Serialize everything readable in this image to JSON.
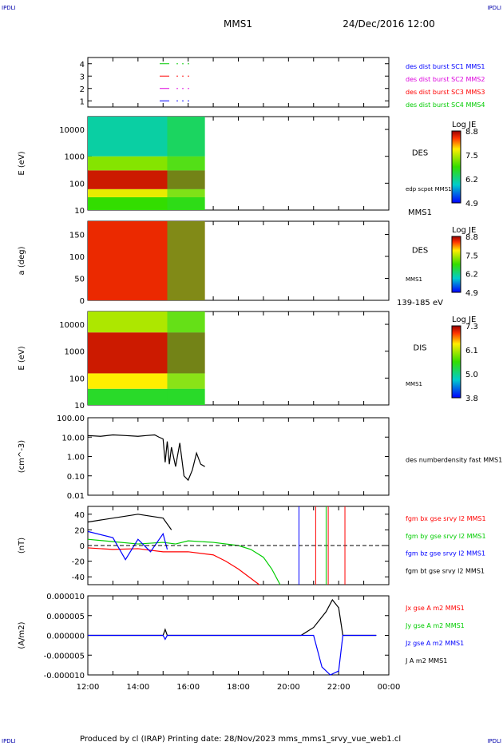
{
  "header": {
    "corner_tl": "IPDLI",
    "corner_tr": "IPDLI",
    "corner_bl": "IPDLI",
    "corner_br": "IPDLI",
    "title": "MMS1",
    "date": "24/Dec/2016 12:00",
    "footer": "Produced by cl (IRAP)   Printing date: 28/Nov/2023   mms_mms1_srvy_vue_web1.cl"
  },
  "colors": {
    "red": "#ff0000",
    "green": "#00cc00",
    "blue": "#0000ff",
    "magenta": "#dd00dd",
    "black": "#000000"
  },
  "chart_data": [
    {
      "id": "spacecraft-status",
      "type": "line",
      "ylim": [
        0.5,
        4.5
      ],
      "y_ticks": [
        "1",
        "2",
        "3",
        "4"
      ],
      "legend_marks": [
        {
          "y": 4,
          "color": "#00cc00"
        },
        {
          "y": 3,
          "color": "#ff0000"
        },
        {
          "y": 2,
          "color": "#dd00dd"
        },
        {
          "y": 1,
          "color": "#0000ff"
        }
      ],
      "legend": [
        {
          "label": "des dist burst SC1 MMS1",
          "color": "#0000ff"
        },
        {
          "label": "des dist burst SC2 MMS2",
          "color": "#dd00dd"
        },
        {
          "label": "des dist burst SC3 MMS3",
          "color": "#ff0000"
        },
        {
          "label": "des dist burst SC4 MMS4",
          "color": "#00cc00"
        }
      ]
    },
    {
      "id": "des-energy-spectrogram",
      "type": "heatmap",
      "ylabel": "E (eV)",
      "y_scale": "log",
      "ylim": [
        10,
        30000
      ],
      "y_ticks": [
        "10",
        "100",
        "1000",
        "10000"
      ],
      "x_range": [
        "12:00",
        "16:40"
      ],
      "data_end": "16:40",
      "side_labels": [
        "DES",
        "edp scpot MMS1",
        "MMS1"
      ],
      "colorbar": {
        "title": "Log JE",
        "ticks": [
          "8.8",
          "7.5",
          "6.2",
          "4.9"
        ]
      },
      "bands": [
        {
          "from_eV": 10,
          "to_eV": 30,
          "level": 0.5
        },
        {
          "from_eV": 30,
          "to_eV": 60,
          "level": 0.72
        },
        {
          "from_eV": 60,
          "to_eV": 300,
          "level": 0.95
        },
        {
          "from_eV": 300,
          "to_eV": 1000,
          "level": 0.6
        },
        {
          "from_eV": 1000,
          "to_eV": 30000,
          "level": 0.3
        }
      ]
    },
    {
      "id": "des-pitch-angle",
      "type": "heatmap",
      "ylabel": "a (deg)",
      "ylim": [
        0,
        180
      ],
      "y_ticks": [
        "0",
        "50",
        "100",
        "150"
      ],
      "side_labels": [
        "DES",
        "MMS1",
        "139-185 eV"
      ],
      "colorbar": {
        "title": "Log JE",
        "ticks": [
          "8.8",
          "7.5",
          "6.2",
          "4.9"
        ]
      },
      "data_end": "16:40"
    },
    {
      "id": "dis-energy-spectrogram",
      "type": "heatmap",
      "ylabel": "E (eV)",
      "y_scale": "log",
      "ylim": [
        10,
        30000
      ],
      "y_ticks": [
        "10",
        "100",
        "1000",
        "10000"
      ],
      "side_labels": [
        "DIS",
        "MMS1"
      ],
      "colorbar": {
        "title": "Log JE",
        "ticks": [
          "7.3",
          "6.1",
          "5.0",
          "3.8"
        ]
      },
      "data_end": "16:40",
      "bands": [
        {
          "from_eV": 10,
          "to_eV": 40,
          "level": 0.45
        },
        {
          "from_eV": 40,
          "to_eV": 150,
          "level": 0.75
        },
        {
          "from_eV": 150,
          "to_eV": 5000,
          "level": 0.95
        },
        {
          "from_eV": 5000,
          "to_eV": 30000,
          "level": 0.65
        }
      ]
    },
    {
      "id": "des-number-density",
      "type": "line",
      "ylabel": "(cm^-3)",
      "y_scale": "log",
      "ylim": [
        0.01,
        100
      ],
      "y_ticks": [
        "0.01",
        "0.10",
        "1.00",
        "10.00",
        "100.00"
      ],
      "legend": [
        {
          "label": "des numberdensity fast MMS1",
          "color": "#000000"
        }
      ],
      "series": [
        {
          "color": "#000000",
          "x": [
            "12:00",
            "12:30",
            "13:00",
            "13:30",
            "14:00",
            "14:20",
            "14:40",
            "14:50",
            "15:00",
            "15:05",
            "15:10",
            "15:15",
            "15:20",
            "15:30",
            "15:40",
            "15:50",
            "16:00",
            "16:10",
            "16:20",
            "16:30",
            "16:40"
          ],
          "y": [
            12,
            11,
            13,
            12,
            11,
            12,
            13,
            10,
            8,
            0.5,
            6,
            0.4,
            3,
            0.3,
            5,
            0.1,
            0.06,
            0.2,
            1.5,
            0.4,
            0.3
          ]
        }
      ]
    },
    {
      "id": "fgm-magnetic-field",
      "type": "line",
      "ylabel": "(nT)",
      "ylim": [
        -50,
        50
      ],
      "y_ticks": [
        "-40",
        "-20",
        "0",
        "20",
        "40"
      ],
      "legend": [
        {
          "label": "fgm bx gse srvy l2 MMS1",
          "color": "#ff0000"
        },
        {
          "label": "fgm by gse srvy l2 MMS1",
          "color": "#00cc00"
        },
        {
          "label": "fgm bz gse srvy l2 MMS1",
          "color": "#0000ff"
        },
        {
          "label": "fgm bt gse srvy l2 MMS1",
          "color": "#000000"
        }
      ],
      "series": [
        {
          "name": "fgm bx gse srvy l2 MMS1",
          "color": "#ff0000",
          "x": [
            "12:00",
            "13:00",
            "14:00",
            "15:00",
            "16:00",
            "17:00",
            "17:30",
            "18:00",
            "18:30",
            "18:50"
          ],
          "y": [
            -3,
            -5,
            -4,
            -8,
            -8,
            -12,
            -20,
            -30,
            -42,
            -50
          ]
        },
        {
          "name": "fgm by gse srvy l2 MMS1",
          "color": "#00cc00",
          "x": [
            "12:00",
            "13:00",
            "14:00",
            "15:00",
            "15:30",
            "16:00",
            "17:00",
            "18:00",
            "18:30",
            "19:00",
            "19:20",
            "19:40"
          ],
          "y": [
            8,
            5,
            2,
            4,
            2,
            6,
            4,
            0,
            -5,
            -15,
            -30,
            -50
          ]
        },
        {
          "name": "fgm bz gse srvy l2 MMS1",
          "color": "#0000ff",
          "x": [
            "12:00",
            "13:00",
            "13:30",
            "14:00",
            "14:30",
            "15:00",
            "15:10"
          ],
          "y": [
            18,
            10,
            -18,
            8,
            -8,
            15,
            -5
          ]
        },
        {
          "name": "fgm bt gse srvy l2 MMS1",
          "color": "#000000",
          "x": [
            "12:00",
            "13:00",
            "14:00",
            "15:00",
            "15:20"
          ],
          "y": [
            30,
            35,
            40,
            35,
            20
          ]
        }
      ]
    },
    {
      "id": "current-density",
      "type": "line",
      "ylabel": "(A/m2)",
      "ylim": [
        -1e-05,
        1e-05
      ],
      "y_ticks": [
        "-0.000010",
        "-0.000005",
        "0.000000",
        "0.000005",
        "0.000010"
      ],
      "legend": [
        {
          "label": "Jx gse A m2 MMS1",
          "color": "#ff0000"
        },
        {
          "label": "Jy gse A m2 MMS1",
          "color": "#00cc00"
        },
        {
          "label": "Jz gse A m2 MMS1",
          "color": "#0000ff"
        },
        {
          "label": "J A m2 MMS1",
          "color": "#000000"
        }
      ],
      "series": [
        {
          "name": "J A m2 MMS1",
          "color": "#000000",
          "x": [
            "12:00",
            "15:00",
            "15:05",
            "15:10",
            "20:30",
            "21:00",
            "21:30",
            "21:45",
            "22:00",
            "22:10",
            "23:30"
          ],
          "y": [
            0,
            0,
            1.5e-06,
            0,
            0,
            2e-06,
            6e-06,
            9e-06,
            7e-06,
            0,
            0
          ]
        },
        {
          "name": "Jz gse A m2 MMS1",
          "color": "#0000ff",
          "x": [
            "12:00",
            "15:00",
            "15:05",
            "15:10",
            "21:00",
            "21:20",
            "21:40",
            "22:00",
            "22:10",
            "23:30"
          ],
          "y": [
            0,
            0,
            -1e-06,
            0,
            0,
            -8e-06,
            -1e-05,
            -9e-06,
            0,
            0
          ]
        }
      ]
    }
  ],
  "x_axis": {
    "range": [
      "12:00",
      "00:00"
    ],
    "tick_labels": [
      "12:00",
      "14:00",
      "16:00",
      "18:00",
      "20:00",
      "22:00",
      "00:00"
    ]
  }
}
